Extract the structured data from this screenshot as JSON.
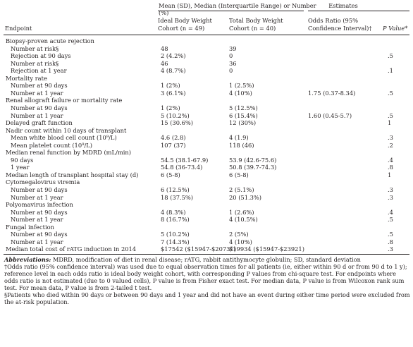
{
  "header": {
    "group_left": "Mean (SD), Median (Interquartile Range) or Number (%)",
    "group_right": "Estimates",
    "endpoint": "Endpoint",
    "col1_line1": "Ideal Body Weight",
    "col1_line2": "Cohort (n = 49)",
    "col2_line1": "Total Body Weight",
    "col2_line2": "Cohort (n = 40)",
    "col3_line1": "Odds Ratio (95%",
    "col3_line2": "Confidence Interval)†",
    "col4": "P Value*"
  },
  "rows": [
    {
      "endpoint": "Biopsy-proven acute rejection",
      "ibw": "",
      "tbw": "",
      "or": "",
      "p": "",
      "level": 0
    },
    {
      "endpoint": "Number at risk§",
      "ibw": "48",
      "tbw": "39",
      "or": "",
      "p": "",
      "level": 1
    },
    {
      "endpoint": "Rejection at 90 days",
      "ibw": "2 (4.2%)",
      "tbw": "0",
      "or": "",
      "p": ".5",
      "level": 1
    },
    {
      "endpoint": "Number at risk§",
      "ibw": "46",
      "tbw": "36",
      "or": "",
      "p": "",
      "level": 1
    },
    {
      "endpoint": "Rejection at 1 year",
      "ibw": "4 (8.7%)",
      "tbw": "0",
      "or": "",
      "p": ".1",
      "level": 1
    },
    {
      "endpoint": "Mortality rate",
      "ibw": "",
      "tbw": "",
      "or": "",
      "p": "",
      "level": 0
    },
    {
      "endpoint": "Number at 90 days",
      "ibw": "1 (2%)",
      "tbw": "1 (2.5%)",
      "or": "",
      "p": "",
      "level": 1
    },
    {
      "endpoint": "Number at 1 year",
      "ibw": "3 (6.1%)",
      "tbw": "4 (10%)",
      "or": "1.75 (0.37-8.34)",
      "p": ".5",
      "level": 1
    },
    {
      "endpoint": "Renal allograft failure or mortality rate",
      "ibw": "",
      "tbw": "",
      "or": "",
      "p": "",
      "level": 0
    },
    {
      "endpoint": "Number at 90 days",
      "ibw": "1 (2%)",
      "tbw": "5 (12.5%)",
      "or": "",
      "p": "",
      "level": 1
    },
    {
      "endpoint": "Number at 1 year",
      "ibw": "5 (10.2%)",
      "tbw": "6 (15.4%)",
      "or": "1.60 (0.45-5.7)",
      "p": ".5",
      "level": 1
    },
    {
      "endpoint": "Delayed graft function",
      "ibw": "15 (30.6%)",
      "tbw": "12 (30%)",
      "or": "",
      "p": "1",
      "level": 0
    },
    {
      "endpoint": "Nadir count within 10 days of transplant",
      "ibw": "",
      "tbw": "",
      "or": "",
      "p": "",
      "level": 0
    },
    {
      "endpoint": "Mean white blood cell count (10⁹/L)",
      "ibw": "4.6 (2.8)",
      "tbw": "4 (1.9)",
      "or": "",
      "p": ".3",
      "level": 1
    },
    {
      "endpoint": "Mean platelet count (10⁹/L)",
      "ibw": "107 (37)",
      "tbw": "118 (46)",
      "or": "",
      "p": ".2",
      "level": 1
    },
    {
      "endpoint": "Median renal function by MDRD (mL/min)",
      "ibw": "",
      "tbw": "",
      "or": "",
      "p": "",
      "level": 0
    },
    {
      "endpoint": "90 days",
      "ibw": "54.5 (38.1-67.9)",
      "tbw": "53.9 (42.6-75.6)",
      "or": "",
      "p": ".4",
      "level": 1
    },
    {
      "endpoint": "1 year",
      "ibw": "54.8 (36-73.4)",
      "tbw": "50.8 (39.7-74.3)",
      "or": "",
      "p": ".8",
      "level": 1
    },
    {
      "endpoint": "Median length of transplant hospital stay (d)",
      "ibw": "6 (5-8)",
      "tbw": "6 (5-8)",
      "or": "",
      "p": "1",
      "level": 0
    },
    {
      "endpoint": "Cytomegalovirus viremia",
      "ibw": "",
      "tbw": "",
      "or": "",
      "p": "",
      "level": 0
    },
    {
      "endpoint": "Number at 90 days",
      "ibw": "6 (12.5%)",
      "tbw": "2 (5.1%)",
      "or": "",
      "p": ".3",
      "level": 1
    },
    {
      "endpoint": "Number at 1 year",
      "ibw": "18 (37.5%)",
      "tbw": "20 (51.3%)",
      "or": "",
      "p": ".3",
      "level": 1
    },
    {
      "endpoint": "Polyomavirus infection",
      "ibw": "",
      "tbw": "",
      "or": "",
      "p": "",
      "level": 0
    },
    {
      "endpoint": "Number at 90 days",
      "ibw": "4 (8.3%)",
      "tbw": "1 (2.6%)",
      "or": "",
      "p": ".4",
      "level": 1
    },
    {
      "endpoint": "Number at 1 year",
      "ibw": "8 (16.7%)",
      "tbw": "4 (10.5%)",
      "or": "",
      "p": ".5",
      "level": 1
    },
    {
      "endpoint": "Fungal infection",
      "ibw": "",
      "tbw": "",
      "or": "",
      "p": "",
      "level": 0
    },
    {
      "endpoint": "Number at 90 days",
      "ibw": "5 (10.2%)",
      "tbw": "2 (5%)",
      "or": "",
      "p": ".5",
      "level": 1
    },
    {
      "endpoint": "Number at 1 year",
      "ibw": "7 (14.3%)",
      "tbw": "4 (10%)",
      "or": "",
      "p": ".8",
      "level": 1
    },
    {
      "endpoint": "Median total cost of rATG induction in 2014",
      "ibw": "$17542 ($15947-$20731)",
      "tbw": "$19934 ($15947-$23921)",
      "or": "",
      "p": ".3",
      "level": 0
    }
  ],
  "footnotes": {
    "abbr_label": "Abbreviations:",
    "abbr_text": " MDRD, modification of diet in renal disease; rATG, rabbit antithymocyte globulin; SD, standard deviation",
    "dagger": "†Odds ratio (95% confidence interval) was used due to equal observation times for all patients (ie, either within 90 d or from 90 d to 1 y); reference level in each odds ratio is ideal body weight cohort, with corresponding P values from chi-square test. For endpoints where odds ratio is not estimated (due to 0 valued cells), P value is from Fisher exact test. For median data, P value is from Wilcoxon rank sum test. For mean data, P value is from 2-tailed t test.",
    "section": "§Patients who died within 90 days or between 90 days and 1 year and did not have an event during either time period were excluded from the at-risk population."
  }
}
